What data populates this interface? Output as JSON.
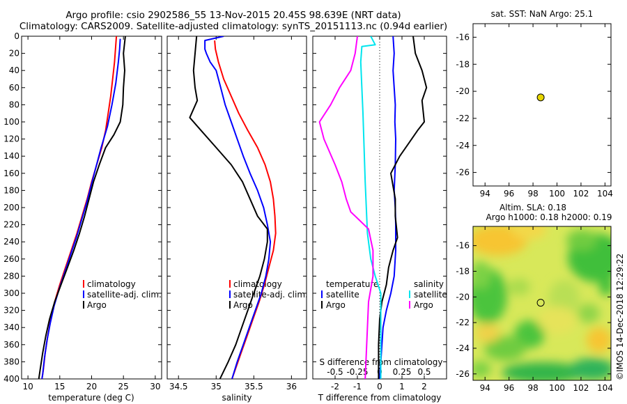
{
  "header": {
    "line1": "Argo profile: csio 2902586_55 13-Nov-2015 20.45S 98.639E (NRT data)",
    "line2": "Climatology: CARS2009. Satellite-adjusted climatology: synTS_20151113.nc (0.94d earlier)"
  },
  "colors": {
    "climatology": "#ff0000",
    "satellite": "#0000ff",
    "argo": "#000000",
    "sat_salinity": "#00e5ee",
    "argo_salinity_diff": "#ff00ff",
    "dot": "#e6d500"
  },
  "chart_data": [
    {
      "type": "line",
      "id": "temperature",
      "xlabel": "temperature (deg C)",
      "ylabel": "",
      "xlim": [
        9,
        31
      ],
      "ylim": [
        0,
        400
      ],
      "xticks": [
        10,
        15,
        20,
        25,
        30
      ],
      "yticks": [
        0,
        20,
        40,
        60,
        80,
        100,
        120,
        140,
        160,
        180,
        200,
        220,
        240,
        260,
        280,
        300,
        320,
        340,
        360,
        380,
        400
      ],
      "legend": {
        "items": [
          "climatology",
          "satellite-adj. clim.",
          "Argo"
        ],
        "placement": "lower-right"
      },
      "series": [
        {
          "name": "climatology",
          "color": "#ff0000",
          "points": [
            [
              23.9,
              0
            ],
            [
              23.8,
              10
            ],
            [
              23.6,
              30
            ],
            [
              23.3,
              50
            ],
            [
              23.0,
              70
            ],
            [
              22.6,
              90
            ],
            [
              22.2,
              110
            ],
            [
              21.6,
              130
            ],
            [
              20.8,
              150
            ],
            [
              20.0,
              170
            ],
            [
              19.3,
              190
            ],
            [
              18.5,
              210
            ],
            [
              17.7,
              230
            ],
            [
              16.8,
              250
            ],
            [
              15.9,
              270
            ],
            [
              15.0,
              290
            ],
            [
              14.2,
              310
            ],
            [
              13.6,
              330
            ],
            [
              13.1,
              350
            ],
            [
              12.7,
              370
            ],
            [
              12.4,
              390
            ],
            [
              12.2,
              400
            ]
          ]
        },
        {
          "name": "satellite-adj. clim.",
          "color": "#0000ff",
          "points": [
            [
              24.5,
              3
            ],
            [
              24.4,
              15
            ],
            [
              24.2,
              30
            ],
            [
              23.8,
              55
            ],
            [
              23.2,
              80
            ],
            [
              22.5,
              105
            ],
            [
              21.5,
              130
            ],
            [
              20.6,
              155
            ],
            [
              19.9,
              175
            ],
            [
              19.2,
              195
            ],
            [
              18.4,
              215
            ],
            [
              17.6,
              235
            ],
            [
              16.7,
              255
            ],
            [
              15.8,
              275
            ],
            [
              14.9,
              295
            ],
            [
              14.1,
              315
            ],
            [
              13.5,
              335
            ],
            [
              13.0,
              355
            ],
            [
              12.6,
              375
            ],
            [
              12.3,
              395
            ],
            [
              12.2,
              400
            ]
          ]
        },
        {
          "name": "Argo",
          "color": "#000000",
          "points": [
            [
              25.3,
              0
            ],
            [
              25.0,
              20
            ],
            [
              25.2,
              40
            ],
            [
              25.0,
              60
            ],
            [
              24.9,
              80
            ],
            [
              24.5,
              100
            ],
            [
              23.5,
              115
            ],
            [
              22.2,
              130
            ],
            [
              21.2,
              150
            ],
            [
              20.3,
              170
            ],
            [
              19.6,
              190
            ],
            [
              18.9,
              210
            ],
            [
              18.1,
              230
            ],
            [
              17.2,
              250
            ],
            [
              16.2,
              270
            ],
            [
              15.2,
              290
            ],
            [
              14.2,
              310
            ],
            [
              13.4,
              330
            ],
            [
              12.8,
              350
            ],
            [
              12.3,
              370
            ],
            [
              11.9,
              390
            ],
            [
              11.7,
              400
            ]
          ]
        }
      ]
    },
    {
      "type": "line",
      "id": "salinity",
      "xlabel": "salinity",
      "ylabel": "",
      "xlim": [
        34.35,
        36.2
      ],
      "ylim": [
        0,
        400
      ],
      "xticks": [
        34.5,
        35,
        35.5,
        36
      ],
      "xticklabels": [
        "34.5",
        "35",
        "35.5",
        "36"
      ],
      "legend": {
        "items": [
          "climatology",
          "satellite-adj. clim.",
          "Argo"
        ],
        "placement": "lower-right"
      },
      "series": [
        {
          "name": "climatology",
          "color": "#ff0000",
          "points": [
            [
              34.98,
              5
            ],
            [
              34.99,
              15
            ],
            [
              35.03,
              30
            ],
            [
              35.1,
              50
            ],
            [
              35.2,
              70
            ],
            [
              35.3,
              90
            ],
            [
              35.42,
              110
            ],
            [
              35.55,
              130
            ],
            [
              35.65,
              150
            ],
            [
              35.72,
              170
            ],
            [
              35.76,
              190
            ],
            [
              35.78,
              210
            ],
            [
              35.79,
              230
            ],
            [
              35.76,
              250
            ],
            [
              35.7,
              270
            ],
            [
              35.64,
              290
            ],
            [
              35.57,
              310
            ],
            [
              35.49,
              330
            ],
            [
              35.41,
              350
            ],
            [
              35.33,
              370
            ],
            [
              35.25,
              390
            ],
            [
              35.21,
              400
            ]
          ]
        },
        {
          "name": "satellite-adj. clim.",
          "color": "#0000ff",
          "points": [
            [
              35.1,
              0
            ],
            [
              34.85,
              5
            ],
            [
              34.85,
              15
            ],
            [
              34.87,
              20
            ],
            [
              34.92,
              30
            ],
            [
              35.0,
              40
            ],
            [
              35.06,
              60
            ],
            [
              35.12,
              80
            ],
            [
              35.2,
              100
            ],
            [
              35.28,
              120
            ],
            [
              35.36,
              140
            ],
            [
              35.45,
              160
            ],
            [
              35.55,
              180
            ],
            [
              35.63,
              200
            ],
            [
              35.68,
              220
            ],
            [
              35.72,
              240
            ],
            [
              35.7,
              260
            ],
            [
              35.66,
              280
            ],
            [
              35.6,
              300
            ],
            [
              35.52,
              320
            ],
            [
              35.44,
              340
            ],
            [
              35.36,
              360
            ],
            [
              35.28,
              380
            ],
            [
              35.21,
              400
            ]
          ]
        },
        {
          "name": "Argo",
          "color": "#000000",
          "points": [
            [
              34.74,
              0
            ],
            [
              34.72,
              20
            ],
            [
              34.7,
              40
            ],
            [
              34.72,
              60
            ],
            [
              34.75,
              75
            ],
            [
              34.65,
              95
            ],
            [
              34.8,
              110
            ],
            [
              35.0,
              130
            ],
            [
              35.2,
              150
            ],
            [
              35.35,
              170
            ],
            [
              35.45,
              190
            ],
            [
              35.55,
              210
            ],
            [
              35.68,
              225
            ],
            [
              35.68,
              240
            ],
            [
              35.64,
              260
            ],
            [
              35.58,
              280
            ],
            [
              35.5,
              300
            ],
            [
              35.42,
              320
            ],
            [
              35.34,
              340
            ],
            [
              35.26,
              360
            ],
            [
              35.16,
              380
            ],
            [
              35.05,
              400
            ]
          ]
        }
      ]
    },
    {
      "type": "line",
      "id": "differences",
      "xlabel": "T difference from climatology",
      "x2label": "S difference from climatology",
      "xlim": [
        -3,
        3
      ],
      "ylim": [
        0,
        400
      ],
      "xticks": [
        -2,
        -1,
        0,
        1,
        2
      ],
      "x2ticks": [
        "-0.5",
        "-0.25",
        "0",
        "0.25",
        "0.5"
      ],
      "legend_left": {
        "title": "temperature",
        "items": [
          "satellite",
          "Argo"
        ]
      },
      "legend_right": {
        "title": "salinity",
        "items": [
          "satellite",
          "Argo"
        ]
      },
      "series": [
        {
          "name": "T satellite",
          "color": "#0000ff",
          "points": [
            [
              0.6,
              0
            ],
            [
              0.65,
              20
            ],
            [
              0.6,
              40
            ],
            [
              0.65,
              60
            ],
            [
              0.7,
              80
            ],
            [
              0.68,
              100
            ],
            [
              0.72,
              120
            ],
            [
              0.7,
              150
            ],
            [
              0.65,
              180
            ],
            [
              0.7,
              200
            ],
            [
              0.72,
              220
            ],
            [
              0.72,
              250
            ],
            [
              0.65,
              280
            ],
            [
              0.5,
              300
            ],
            [
              0.3,
              320
            ],
            [
              0.15,
              340
            ],
            [
              0.1,
              360
            ],
            [
              0.05,
              380
            ],
            [
              0.0,
              400
            ]
          ]
        },
        {
          "name": "T Argo",
          "color": "#000000",
          "points": [
            [
              1.5,
              0
            ],
            [
              1.6,
              20
            ],
            [
              1.9,
              40
            ],
            [
              2.1,
              60
            ],
            [
              1.9,
              75
            ],
            [
              2.0,
              100
            ],
            [
              1.7,
              110
            ],
            [
              1.3,
              125
            ],
            [
              0.9,
              140
            ],
            [
              0.5,
              160
            ],
            [
              0.6,
              175
            ],
            [
              0.7,
              190
            ],
            [
              0.7,
              210
            ],
            [
              0.8,
              235
            ],
            [
              0.6,
              250
            ],
            [
              0.4,
              270
            ],
            [
              0.3,
              290
            ],
            [
              0.1,
              310
            ],
            [
              0.0,
              330
            ],
            [
              -0.05,
              360
            ],
            [
              -0.05,
              400
            ]
          ]
        },
        {
          "name": "S satellite",
          "color": "#00e5ee",
          "points": [
            [
              -0.4,
              0
            ],
            [
              -0.2,
              10
            ],
            [
              -0.8,
              12
            ],
            [
              -0.85,
              30
            ],
            [
              -0.8,
              60
            ],
            [
              -0.75,
              90
            ],
            [
              -0.7,
              130
            ],
            [
              -0.65,
              170
            ],
            [
              -0.6,
              200
            ],
            [
              -0.55,
              230
            ],
            [
              -0.4,
              260
            ],
            [
              -0.2,
              280
            ],
            [
              0.05,
              300
            ],
            [
              0.05,
              330
            ],
            [
              0.05,
              360
            ],
            [
              0.05,
              400
            ]
          ]
        },
        {
          "name": "S Argo",
          "color": "#ff00ff",
          "points": [
            [
              -1.0,
              0
            ],
            [
              -1.1,
              20
            ],
            [
              -1.3,
              40
            ],
            [
              -1.8,
              60
            ],
            [
              -2.2,
              80
            ],
            [
              -2.7,
              100
            ],
            [
              -2.5,
              120
            ],
            [
              -2.0,
              150
            ],
            [
              -1.7,
              170
            ],
            [
              -1.5,
              190
            ],
            [
              -1.3,
              205
            ],
            [
              -0.9,
              215
            ],
            [
              -0.5,
              225
            ],
            [
              -0.3,
              250
            ],
            [
              -0.3,
              280
            ],
            [
              -0.5,
              310
            ],
            [
              -0.55,
              340
            ],
            [
              -0.6,
              370
            ],
            [
              -0.65,
              400
            ]
          ]
        }
      ]
    },
    {
      "type": "scatter",
      "id": "sst_map",
      "title": "sat. SST: NaN Argo: 25.1",
      "xlim": [
        93,
        104.5
      ],
      "ylim": [
        -27,
        -15
      ],
      "xticks": [
        94,
        96,
        98,
        100,
        102,
        104
      ],
      "yticks": [
        -16,
        -18,
        -20,
        -22,
        -24,
        -26
      ],
      "points": [
        {
          "x": 98.639,
          "y": -20.45
        }
      ]
    },
    {
      "type": "heatmap",
      "id": "sla_map",
      "title1": "Altim. SLA: 0.18",
      "title2": "Argo h1000: 0.18 h2000: 0.19",
      "xlim": [
        93,
        104.5
      ],
      "ylim": [
        -26.5,
        -14.5
      ],
      "xticks": [
        94,
        96,
        98,
        100,
        102,
        104
      ],
      "yticks": [
        -16,
        -18,
        -20,
        -22,
        -24,
        -26
      ],
      "points": [
        {
          "x": 98.639,
          "y": -20.45
        }
      ]
    }
  ],
  "footer": {
    "credit": "©IMOS 14-Dec-2018 12:29:22"
  }
}
